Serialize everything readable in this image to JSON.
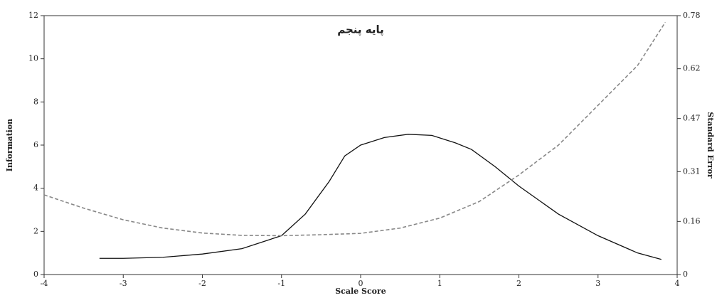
{
  "chart_data": {
    "type": "line",
    "title": "پایه پنجم",
    "xlabel": "Scale Score",
    "ylabel": "Information",
    "y2label": "Standard Error",
    "xlim": [
      -4,
      4
    ],
    "xticks": [
      -4,
      -3,
      -2,
      -1,
      0,
      1,
      2,
      3,
      4
    ],
    "ylim": [
      0,
      12
    ],
    "yticks": [
      0,
      2,
      4,
      6,
      8,
      10,
      12
    ],
    "y2lim": [
      0,
      0.78
    ],
    "y2ticks": [
      0,
      0.16,
      0.31,
      0.47,
      0.62,
      0.78
    ],
    "series": [
      {
        "name": "Information",
        "color": "#111111",
        "dash": false,
        "x": [
          -3.3,
          -3,
          -2.5,
          -2,
          -1.5,
          -1,
          -0.7,
          -0.4,
          -0.2,
          0,
          0.3,
          0.6,
          0.9,
          1.2,
          1.4,
          1.7,
          2,
          2.5,
          3,
          3.5,
          3.8
        ],
        "values": [
          0.75,
          0.75,
          0.8,
          0.95,
          1.2,
          1.8,
          2.8,
          4.3,
          5.5,
          6.0,
          6.35,
          6.5,
          6.45,
          6.1,
          5.8,
          5.0,
          4.1,
          2.8,
          1.8,
          1.0,
          0.7
        ]
      },
      {
        "name": "Standard Error",
        "color": "#888888",
        "dash": true,
        "axis": "y2",
        "x": [
          -4,
          -3.5,
          -3,
          -2.5,
          -2,
          -1.5,
          -1,
          -0.5,
          0,
          0.5,
          1,
          1.5,
          2,
          2.5,
          3,
          3.5,
          3.85
        ],
        "values": [
          0.24,
          0.2,
          0.165,
          0.14,
          0.125,
          0.118,
          0.117,
          0.12,
          0.124,
          0.14,
          0.17,
          0.22,
          0.3,
          0.39,
          0.51,
          0.63,
          0.76
        ]
      }
    ]
  }
}
